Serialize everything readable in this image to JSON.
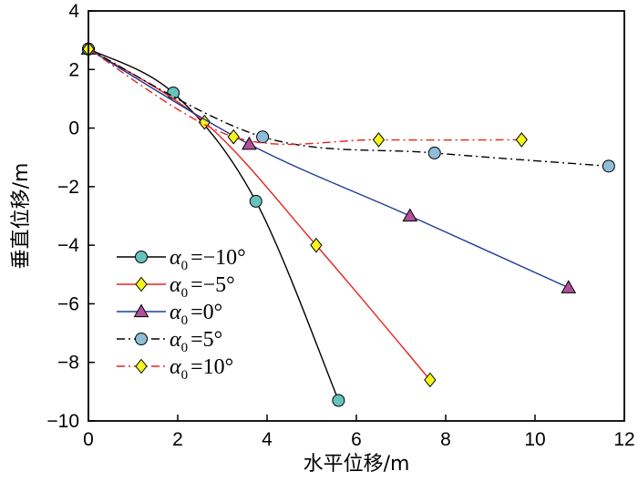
{
  "chart_data": {
    "type": "line",
    "title": "",
    "xlabel": "水平位移/m",
    "ylabel": "垂直位移/m",
    "xlim": [
      0,
      12
    ],
    "ylim": [
      -10,
      4
    ],
    "xticks": [
      0,
      2,
      4,
      6,
      8,
      10,
      12
    ],
    "yticks": [
      4,
      2,
      0,
      -2,
      -4,
      -6,
      -8,
      -10
    ],
    "grid": false,
    "legend_position": "bottom-left",
    "series": [
      {
        "name": "α0 = −10°",
        "legend_symbol": "α",
        "legend_subscript": "0",
        "legend_value": "=−10°",
        "color": "#000000",
        "dash": "solid",
        "marker": "circle",
        "marker_fill": "#66c2bf",
        "x": [
          0,
          1.9,
          3.75,
          5.6
        ],
        "y": [
          2.7,
          1.2,
          -2.5,
          -9.3
        ]
      },
      {
        "name": "α0 = −5°",
        "legend_symbol": "α",
        "legend_subscript": "0",
        "legend_value": "=−5°",
        "color": "#e8231f",
        "dash": "solid",
        "marker": "diamond",
        "marker_fill": "#f5f51e",
        "x": [
          0,
          2.6,
          5.1,
          7.65
        ],
        "y": [
          2.7,
          0.2,
          -4.0,
          -8.6
        ]
      },
      {
        "name": "α0 = 0°",
        "legend_symbol": "α",
        "legend_subscript": "0",
        "legend_value": "=0°",
        "color": "#1f3d99",
        "dash": "solid",
        "marker": "triangle",
        "marker_fill": "#b0509b",
        "x": [
          0,
          3.6,
          7.2,
          10.75
        ],
        "y": [
          2.7,
          -0.55,
          -3.0,
          -5.45
        ]
      },
      {
        "name": "α0 = 5°",
        "legend_symbol": "α",
        "legend_subscript": "0",
        "legend_value": "=5°",
        "color": "#000000",
        "dash": "dashdot",
        "marker": "circle",
        "marker_fill": "#8fbdd6",
        "x": [
          0,
          3.9,
          7.75,
          11.65
        ],
        "y": [
          2.7,
          -0.3,
          -0.85,
          -1.3
        ]
      },
      {
        "name": "α0 = 10°",
        "legend_symbol": "α",
        "legend_subscript": "0",
        "legend_value": "=10°",
        "color": "#e8231f",
        "dash": "dashdot",
        "marker": "diamond",
        "marker_fill": "#f5f51e",
        "x": [
          0,
          3.25,
          6.5,
          9.7
        ],
        "y": [
          2.7,
          -0.3,
          -0.4,
          -0.4
        ]
      }
    ]
  }
}
